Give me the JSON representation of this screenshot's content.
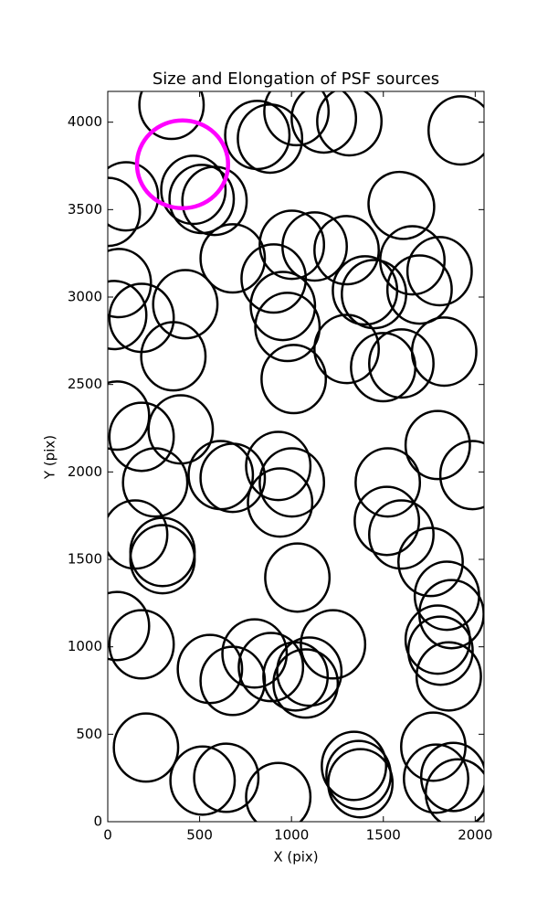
{
  "chart_data": {
    "type": "ellipse",
    "title": "Size and Elongation of PSF sources",
    "xlabel": "X (pix)",
    "ylabel": "Y (pix)",
    "xlim": [
      0,
      2048
    ],
    "ylim": [
      0,
      4176
    ],
    "xticks": [
      0,
      500,
      1000,
      1500,
      2000
    ],
    "yticks": [
      0,
      500,
      1000,
      1500,
      2000,
      2500,
      3000,
      3500,
      4000
    ],
    "color": "#000000",
    "width": 350,
    "height": 390,
    "x": [
      347,
      814,
      883,
      1027,
      1176,
      1315,
      1921,
      99,
      0,
      466,
      511,
      581,
      1598,
      680,
      1002,
      1126,
      1300,
      1658,
      1806,
      1697,
      1400,
      1449,
      903,
      953,
      978,
      60,
      35,
      184,
      422,
      357,
      1012,
      1300,
      1499,
      1598,
      1831,
      50,
      184,
      397,
      258,
      615,
      680,
      928,
      1002,
      938,
      1796,
      1985,
      1524,
      1519,
      1598,
      149,
      298,
      298,
      1032,
      1757,
      1846,
      1871,
      50,
      184,
      556,
      680,
      799,
      888,
      1022,
      1097,
      1077,
      1226,
      1796,
      1811,
      1856,
      208,
      516,
      645,
      928,
      1340,
      1365,
      1375,
      1772,
      1787,
      1881,
      1906
    ],
    "y": [
      4099,
      3927,
      3906,
      4063,
      4021,
      4005,
      3953,
      3576,
      3487,
      3613,
      3561,
      3550,
      3524,
      3221,
      3299,
      3289,
      3268,
      3210,
      3148,
      3043,
      3038,
      3017,
      3106,
      2949,
      2829,
      3080,
      2897,
      2881,
      2959,
      2661,
      2531,
      2703,
      2599,
      2620,
      2688,
      2322,
      2201,
      2243,
      1940,
      1982,
      1966,
      2034,
      1940,
      1825,
      2154,
      1982,
      1940,
      1720,
      1642,
      1642,
      1542,
      1501,
      1396,
      1485,
      1292,
      1187,
      1119,
      1014,
      873,
      805,
      962,
      884,
      831,
      858,
      790,
      1014,
      1041,
      978,
      831,
      424,
      235,
      251,
      141,
      319,
      267,
      220,
      429,
      246,
      256,
      162
    ],
    "angle": [
      0,
      0,
      0,
      0,
      0,
      0,
      0,
      0,
      0,
      0,
      0,
      0,
      35,
      0,
      0,
      0,
      0,
      0,
      0,
      0,
      0,
      0,
      0,
      0,
      0,
      0,
      0,
      0,
      0,
      0,
      0,
      0,
      0,
      0,
      0,
      0,
      0,
      0,
      0,
      0,
      0,
      0,
      0,
      0,
      0,
      0,
      0,
      0,
      0,
      0,
      0,
      0,
      0,
      0,
      0,
      0,
      0,
      0,
      0,
      0,
      0,
      0,
      0,
      0,
      0,
      0,
      0,
      0,
      0,
      0,
      0,
      0,
      0,
      0,
      0,
      0,
      0,
      0,
      0,
      0
    ],
    "highlight": {
      "x": 407,
      "y": 3759,
      "width": 496,
      "height": 502,
      "color": "#ff00ff"
    }
  }
}
